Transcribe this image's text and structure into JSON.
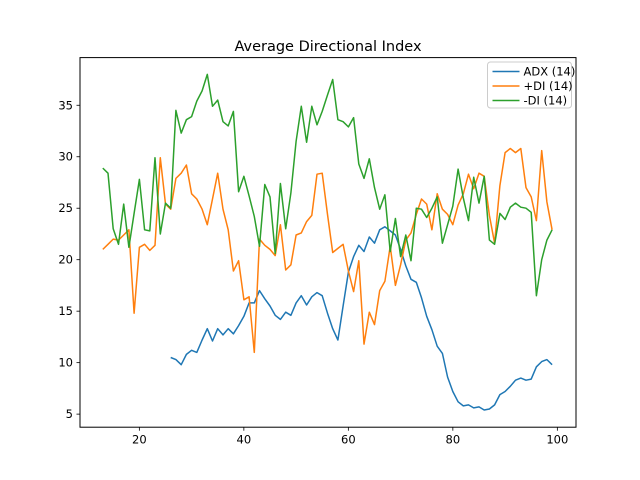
{
  "window": {
    "background": "#ffffff",
    "frame_color": "#000000"
  },
  "chart_data": {
    "type": "line",
    "title": "Average Directional Index",
    "xlabel": "",
    "ylabel": "",
    "xlim": [
      8.64,
      103.57
    ],
    "ylim": [
      3.73,
      39.63
    ],
    "xticks": [
      20,
      40,
      60,
      80,
      100
    ],
    "yticks": [
      5,
      10,
      15,
      20,
      25,
      30,
      35
    ],
    "grid": false,
    "legend": {
      "position": "upper right",
      "border_color": "#cccccc",
      "entries": [
        "ADX (14)",
        "+DI (14)",
        "-DI (14)"
      ]
    },
    "series": [
      {
        "name": "ADX (14)",
        "color": "#1f77b4",
        "x_start": 26,
        "x_step": 1,
        "values": [
          10.5,
          10.3,
          9.8,
          10.8,
          11.2,
          11.0,
          12.2,
          13.3,
          12.1,
          13.3,
          12.7,
          13.3,
          12.8,
          13.6,
          14.5,
          15.8,
          15.8,
          17.0,
          16.2,
          15.5,
          14.6,
          14.2,
          14.9,
          14.6,
          15.8,
          16.5,
          15.6,
          16.4,
          16.8,
          16.5,
          14.8,
          13.3,
          12.2,
          15.5,
          18.8,
          20.3,
          21.4,
          20.8,
          22.2,
          21.6,
          22.9,
          23.2,
          22.8,
          22.4,
          21.0,
          19.4,
          18.1,
          17.8,
          16.3,
          14.5,
          13.2,
          11.6,
          10.9,
          8.6,
          7.2,
          6.2,
          5.8,
          5.9,
          5.6,
          5.7,
          5.4,
          5.5,
          5.9,
          6.9,
          7.2,
          7.7,
          8.3,
          8.5,
          8.3,
          8.4,
          9.6,
          10.1,
          10.3,
          9.8
        ]
      },
      {
        "name": "+DI (14)",
        "color": "#ff7f0e",
        "x_start": 13,
        "x_step": 1,
        "values": [
          21.0,
          21.5,
          22.0,
          21.9,
          22.4,
          22.9,
          14.8,
          21.2,
          21.5,
          20.9,
          21.4,
          29.9,
          25.4,
          24.9,
          27.9,
          28.4,
          29.2,
          26.4,
          25.9,
          24.9,
          23.4,
          25.9,
          28.4,
          24.9,
          22.9,
          18.9,
          19.9,
          16.1,
          16.4,
          11.0,
          22.0,
          21.4,
          21.0,
          20.4,
          23.4,
          19.0,
          19.5,
          22.4,
          22.6,
          23.7,
          24.3,
          28.3,
          28.4,
          24.4,
          20.7,
          21.1,
          21.5,
          18.9,
          16.9,
          19.9,
          11.8,
          14.9,
          13.7,
          17.0,
          17.9,
          21.3,
          17.5,
          19.5,
          21.9,
          22.6,
          24.4,
          25.9,
          25.4,
          22.9,
          26.4,
          24.9,
          24.4,
          23.4,
          25.3,
          26.4,
          28.3,
          26.9,
          28.4,
          28.1,
          24.3,
          21.6,
          27.2,
          30.4,
          30.8,
          30.4,
          30.8,
          27.0,
          26.1,
          23.8,
          30.6,
          25.6,
          22.9
        ]
      },
      {
        "name": "-DI (14)",
        "color": "#2ca02c",
        "x_start": 13,
        "x_step": 1,
        "values": [
          28.9,
          28.4,
          23.0,
          21.5,
          25.4,
          21.2,
          24.5,
          27.8,
          22.9,
          22.8,
          29.9,
          22.5,
          25.5,
          25.0,
          34.5,
          32.3,
          33.6,
          33.9,
          35.4,
          36.4,
          38.0,
          34.9,
          35.5,
          33.4,
          33.0,
          34.4,
          26.6,
          28.1,
          26.2,
          24.2,
          21.3,
          27.3,
          26.1,
          20.6,
          27.4,
          23.0,
          26.5,
          31.5,
          34.9,
          31.4,
          34.9,
          33.1,
          34.4,
          36.0,
          37.5,
          33.6,
          33.4,
          32.9,
          33.8,
          29.3,
          27.9,
          29.8,
          27.0,
          24.9,
          26.3,
          20.8,
          24.0,
          20.3,
          22.4,
          19.9,
          25.0,
          24.9,
          24.1,
          25.0,
          26.1,
          21.6,
          23.4,
          25.2,
          28.8,
          26.0,
          23.8,
          28.0,
          25.5,
          28.1,
          21.9,
          21.5,
          24.5,
          23.9,
          25.1,
          25.5,
          25.1,
          25.0,
          24.6,
          16.5,
          20.0,
          21.9,
          22.9
        ]
      }
    ]
  }
}
